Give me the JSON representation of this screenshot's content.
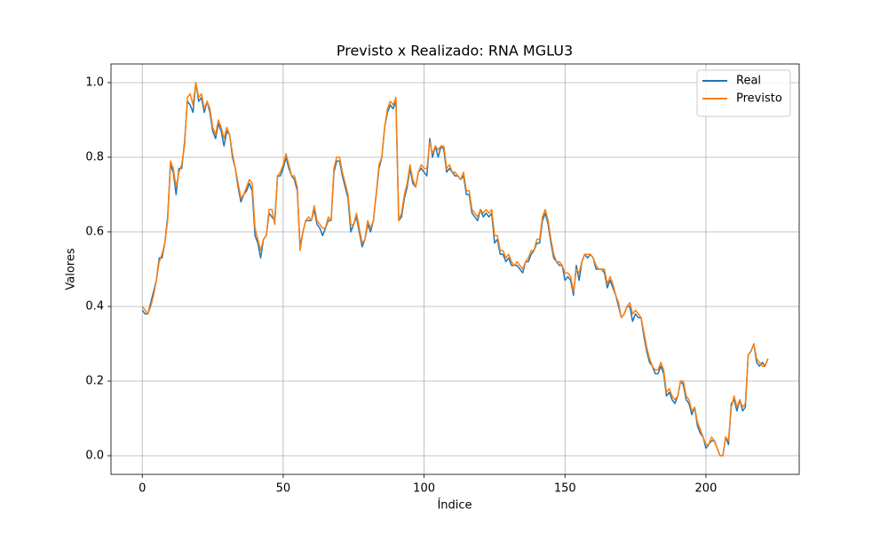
{
  "chart_data": {
    "type": "line",
    "title": "Previsto x Realizado: RNA MGLU3",
    "x_label": "Índice",
    "y_label": "Valores",
    "x": [
      0,
      1,
      2,
      3,
      4,
      5,
      6,
      7,
      8,
      9,
      10,
      11,
      12,
      13,
      14,
      15,
      16,
      17,
      18,
      19,
      20,
      21,
      22,
      23,
      24,
      25,
      26,
      27,
      28,
      29,
      30,
      31,
      32,
      33,
      34,
      35,
      36,
      37,
      38,
      39,
      40,
      41,
      42,
      43,
      44,
      45,
      46,
      47,
      48,
      49,
      50,
      51,
      52,
      53,
      54,
      55,
      56,
      57,
      58,
      59,
      60,
      61,
      62,
      63,
      64,
      65,
      66,
      67,
      68,
      69,
      70,
      71,
      72,
      73,
      74,
      75,
      76,
      77,
      78,
      79,
      80,
      81,
      82,
      83,
      84,
      85,
      86,
      87,
      88,
      89,
      90,
      91,
      92,
      93,
      94,
      95,
      96,
      97,
      98,
      99,
      100,
      101,
      102,
      103,
      104,
      105,
      106,
      107,
      108,
      109,
      110,
      111,
      112,
      113,
      114,
      115,
      116,
      117,
      118,
      119,
      120,
      121,
      122,
      123,
      124,
      125,
      126,
      127,
      128,
      129,
      130,
      131,
      132,
      133,
      134,
      135,
      136,
      137,
      138,
      139,
      140,
      141,
      142,
      143,
      144,
      145,
      146,
      147,
      148,
      149,
      150,
      151,
      152,
      153,
      154,
      155,
      156,
      157,
      158,
      159,
      160,
      161,
      162,
      163,
      164,
      165,
      166,
      167,
      168,
      169,
      170,
      171,
      172,
      173,
      174,
      175,
      176,
      177,
      178,
      179,
      180,
      181,
      182,
      183,
      184,
      185,
      186,
      187,
      188,
      189,
      190,
      191,
      192,
      193,
      194,
      195,
      196,
      197,
      198,
      199,
      200,
      201,
      202,
      203,
      204,
      205,
      206,
      207,
      208,
      209,
      210,
      211,
      212,
      213,
      214,
      215,
      216,
      217,
      218,
      219,
      220,
      221,
      222
    ],
    "series": [
      {
        "name": "Real",
        "color": "#1f77b4",
        "values": [
          0.39,
          0.38,
          0.38,
          0.41,
          0.44,
          0.47,
          0.53,
          0.53,
          0.57,
          0.64,
          0.78,
          0.76,
          0.7,
          0.77,
          0.77,
          0.84,
          0.95,
          0.94,
          0.92,
          1.0,
          0.95,
          0.96,
          0.92,
          0.95,
          0.92,
          0.87,
          0.85,
          0.89,
          0.87,
          0.83,
          0.87,
          0.86,
          0.8,
          0.77,
          0.72,
          0.68,
          0.7,
          0.71,
          0.73,
          0.71,
          0.59,
          0.57,
          0.53,
          0.58,
          0.59,
          0.65,
          0.64,
          0.63,
          0.75,
          0.75,
          0.77,
          0.8,
          0.77,
          0.75,
          0.74,
          0.71,
          0.56,
          0.6,
          0.63,
          0.63,
          0.63,
          0.66,
          0.62,
          0.61,
          0.59,
          0.61,
          0.63,
          0.63,
          0.76,
          0.79,
          0.79,
          0.75,
          0.72,
          0.69,
          0.6,
          0.62,
          0.64,
          0.6,
          0.56,
          0.58,
          0.62,
          0.6,
          0.63,
          0.7,
          0.77,
          0.8,
          0.88,
          0.92,
          0.94,
          0.93,
          0.95,
          0.63,
          0.64,
          0.69,
          0.72,
          0.77,
          0.73,
          0.72,
          0.76,
          0.77,
          0.76,
          0.75,
          0.85,
          0.8,
          0.83,
          0.8,
          0.83,
          0.82,
          0.76,
          0.77,
          0.76,
          0.75,
          0.75,
          0.74,
          0.75,
          0.7,
          0.7,
          0.65,
          0.64,
          0.63,
          0.66,
          0.64,
          0.65,
          0.64,
          0.65,
          0.57,
          0.58,
          0.54,
          0.54,
          0.52,
          0.53,
          0.51,
          0.51,
          0.51,
          0.5,
          0.49,
          0.52,
          0.52,
          0.54,
          0.55,
          0.57,
          0.57,
          0.63,
          0.65,
          0.62,
          0.57,
          0.53,
          0.52,
          0.51,
          0.51,
          0.47,
          0.48,
          0.47,
          0.43,
          0.51,
          0.47,
          0.52,
          0.54,
          0.53,
          0.54,
          0.53,
          0.5,
          0.5,
          0.5,
          0.49,
          0.45,
          0.47,
          0.45,
          0.43,
          0.4,
          0.37,
          0.38,
          0.4,
          0.4,
          0.36,
          0.38,
          0.37,
          0.37,
          0.32,
          0.28,
          0.25,
          0.24,
          0.22,
          0.22,
          0.24,
          0.22,
          0.16,
          0.17,
          0.15,
          0.14,
          0.16,
          0.2,
          0.19,
          0.15,
          0.14,
          0.11,
          0.13,
          0.08,
          0.06,
          0.05,
          0.02,
          0.03,
          0.04,
          0.04,
          0.02,
          0.0,
          0.0,
          0.05,
          0.03,
          0.14,
          0.15,
          0.12,
          0.15,
          0.12,
          0.13,
          0.27,
          0.28,
          0.3,
          0.25,
          0.24,
          0.25,
          0.24,
          0.26
        ]
      },
      {
        "name": "Previsto",
        "color": "#ff7f0e",
        "values": [
          0.4,
          0.39,
          0.38,
          0.4,
          0.43,
          0.47,
          0.52,
          0.54,
          0.57,
          0.63,
          0.79,
          0.77,
          0.72,
          0.76,
          0.78,
          0.83,
          0.96,
          0.97,
          0.94,
          1.0,
          0.96,
          0.97,
          0.93,
          0.95,
          0.93,
          0.88,
          0.86,
          0.9,
          0.88,
          0.85,
          0.88,
          0.86,
          0.81,
          0.77,
          0.73,
          0.69,
          0.7,
          0.72,
          0.74,
          0.73,
          0.61,
          0.58,
          0.55,
          0.58,
          0.59,
          0.66,
          0.66,
          0.62,
          0.75,
          0.76,
          0.78,
          0.81,
          0.78,
          0.75,
          0.75,
          0.72,
          0.55,
          0.6,
          0.63,
          0.64,
          0.63,
          0.67,
          0.63,
          0.62,
          0.61,
          0.61,
          0.64,
          0.63,
          0.77,
          0.8,
          0.8,
          0.76,
          0.73,
          0.7,
          0.62,
          0.62,
          0.65,
          0.61,
          0.57,
          0.58,
          0.63,
          0.61,
          0.63,
          0.7,
          0.78,
          0.8,
          0.88,
          0.93,
          0.95,
          0.94,
          0.96,
          0.63,
          0.65,
          0.7,
          0.73,
          0.78,
          0.74,
          0.72,
          0.76,
          0.78,
          0.77,
          0.77,
          0.84,
          0.81,
          0.83,
          0.82,
          0.83,
          0.83,
          0.77,
          0.78,
          0.76,
          0.76,
          0.75,
          0.74,
          0.76,
          0.71,
          0.71,
          0.66,
          0.65,
          0.64,
          0.66,
          0.65,
          0.66,
          0.65,
          0.66,
          0.59,
          0.59,
          0.55,
          0.55,
          0.53,
          0.54,
          0.52,
          0.51,
          0.52,
          0.51,
          0.5,
          0.52,
          0.53,
          0.55,
          0.55,
          0.58,
          0.58,
          0.64,
          0.66,
          0.63,
          0.58,
          0.54,
          0.52,
          0.52,
          0.51,
          0.49,
          0.49,
          0.48,
          0.44,
          0.5,
          0.49,
          0.52,
          0.54,
          0.54,
          0.54,
          0.53,
          0.51,
          0.5,
          0.5,
          0.5,
          0.46,
          0.48,
          0.46,
          0.43,
          0.41,
          0.37,
          0.38,
          0.4,
          0.41,
          0.38,
          0.39,
          0.38,
          0.37,
          0.33,
          0.29,
          0.26,
          0.24,
          0.23,
          0.23,
          0.25,
          0.23,
          0.17,
          0.18,
          0.16,
          0.15,
          0.16,
          0.2,
          0.2,
          0.16,
          0.15,
          0.12,
          0.13,
          0.09,
          0.07,
          0.05,
          0.03,
          0.03,
          0.05,
          0.04,
          0.02,
          0.0,
          0.0,
          0.05,
          0.04,
          0.13,
          0.16,
          0.13,
          0.15,
          0.13,
          0.14,
          0.27,
          0.28,
          0.3,
          0.26,
          0.25,
          0.24,
          0.24,
          0.26
        ]
      }
    ],
    "xlim": [
      -11.1,
      233.1
    ],
    "ylim": [
      -0.05,
      1.05
    ],
    "xticks": [
      0,
      50,
      100,
      150,
      200
    ],
    "yticks": [
      {
        "value": 0,
        "label": "0.0"
      },
      {
        "value": 0.2,
        "label": "0.2"
      },
      {
        "value": 0.4,
        "label": "0.4"
      },
      {
        "value": 0.6,
        "label": "0.6"
      },
      {
        "value": 0.8,
        "label": "0.8"
      },
      {
        "value": 1,
        "label": "1.0"
      }
    ],
    "grid": true,
    "legend": "upper right"
  }
}
